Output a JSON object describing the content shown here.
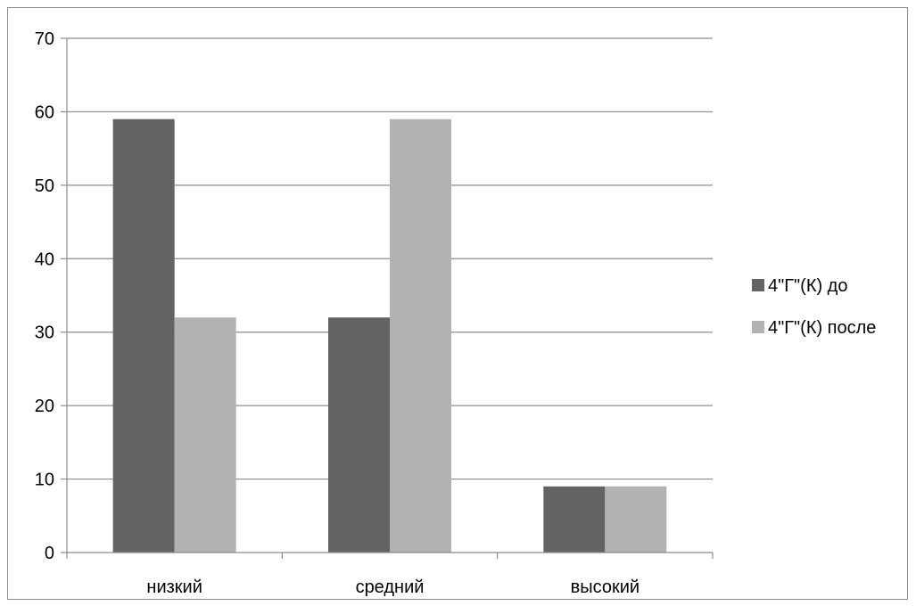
{
  "chart_data": {
    "type": "bar",
    "categories": [
      "низкий",
      "средний",
      "высокий"
    ],
    "series": [
      {
        "name": "4\"Г\"(К) до",
        "values": [
          59,
          32,
          9
        ],
        "color": "#636363"
      },
      {
        "name": "4\"Г\"(К) после",
        "values": [
          32,
          59,
          9
        ],
        "color": "#b2b2b2"
      }
    ],
    "ylim": [
      0,
      70
    ],
    "yticks": [
      0,
      10,
      20,
      30,
      40,
      50,
      60,
      70
    ],
    "grid": true,
    "legend_position": "right",
    "title": "",
    "xlabel": "",
    "ylabel": ""
  }
}
